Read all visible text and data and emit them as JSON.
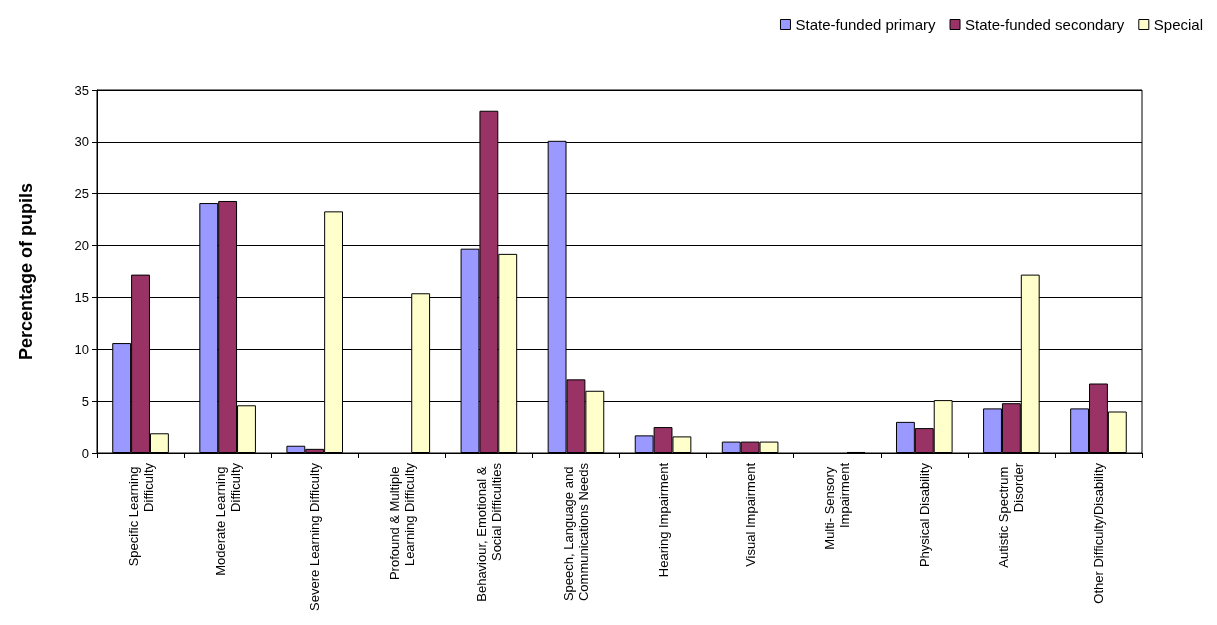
{
  "chart_data": {
    "type": "bar",
    "ylabel": "Percentage of pupils",
    "categories": [
      "Specific Learning Difficulty",
      "Moderate Learning Difficulty",
      "Severe Learning Difficulty",
      "Profound & Multiple Learning Difficulty",
      "Behaviour, Emotional & Social Difficulties",
      "Speech, Language and Communications Needs",
      "Hearing Impairment",
      "Visual Impairment",
      "Multi- Sensory Impairment",
      "Physical Disability",
      "Autistic Spectrum Disorder",
      "Other Difficulty/Disability"
    ],
    "series": [
      {
        "name": "State-funded primary",
        "color": "#9999ff",
        "values": [
          10.6,
          24.1,
          0.7,
          null,
          19.7,
          30.1,
          1.7,
          1.1,
          null,
          3.0,
          4.3,
          4.3
        ]
      },
      {
        "name": "State-funded secondary",
        "color": "#993366",
        "values": [
          17.2,
          24.3,
          0.4,
          null,
          33.0,
          7.1,
          2.5,
          1.1,
          null,
          2.4,
          4.8,
          6.7
        ]
      },
      {
        "name": "Special",
        "color": "#ffffcc",
        "values": [
          1.9,
          4.6,
          23.3,
          15.4,
          19.2,
          6.0,
          1.6,
          1.1,
          0.1,
          5.1,
          17.2,
          4.0
        ]
      }
    ],
    "ylim": [
      0,
      35
    ],
    "yticks": [
      0,
      5,
      10,
      15,
      20,
      25,
      30,
      35
    ],
    "grid": "y",
    "legend": "top right"
  }
}
